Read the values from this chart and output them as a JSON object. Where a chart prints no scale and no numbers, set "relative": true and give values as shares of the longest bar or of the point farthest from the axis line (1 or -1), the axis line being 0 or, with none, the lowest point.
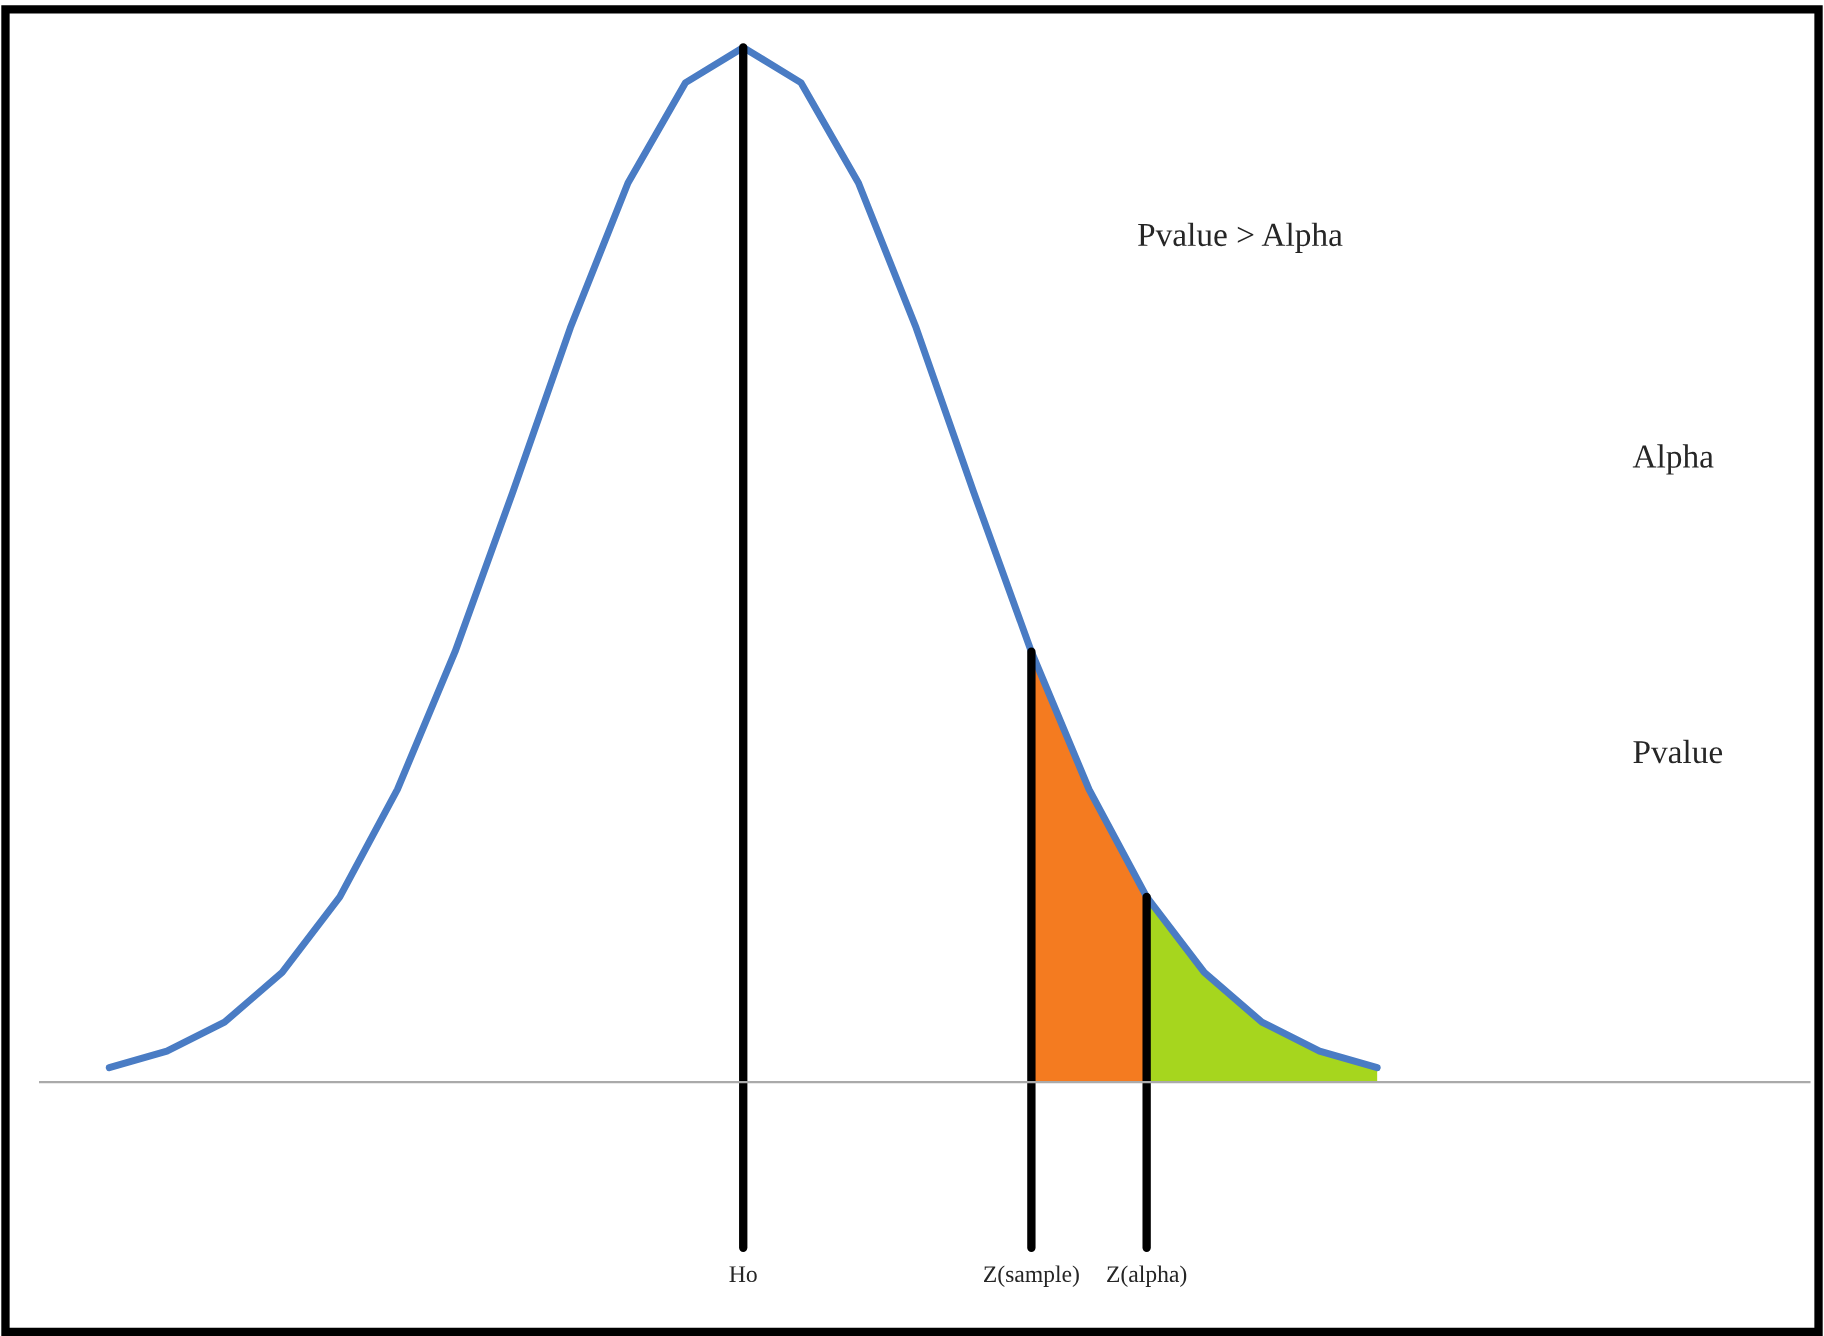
{
  "chart_data": {
    "type": "line",
    "relative": true,
    "categories": [
      null,
      null,
      null,
      null,
      null,
      null,
      null,
      null,
      null,
      null,
      null,
      "Ho",
      null,
      null,
      null,
      null,
      "Z(sample)",
      null,
      "Z(alpha)",
      null,
      null,
      null,
      null,
      null,
      null,
      null,
      null,
      null,
      null,
      null
    ],
    "series": [
      {
        "color": "#4a7cc4",
        "values": [
          0.014,
          0.03,
          0.058,
          0.106,
          0.179,
          0.283,
          0.416,
          0.57,
          0.729,
          0.869,
          0.966,
          1,
          0.966,
          0.869,
          0.729,
          0.57,
          0.416,
          0.283,
          0.179,
          0.106,
          0.058,
          0.03,
          0.014,
          null,
          null,
          null,
          null,
          null,
          null,
          null
        ]
      },
      {
        "type": "area",
        "color": "#f47b20",
        "values": [
          null,
          null,
          null,
          null,
          null,
          null,
          null,
          null,
          null,
          null,
          null,
          null,
          null,
          null,
          null,
          null,
          0.416,
          0.283,
          0.179,
          null,
          null,
          null,
          null,
          null,
          null,
          null,
          null,
          null,
          null,
          null
        ]
      },
      {
        "type": "area",
        "color": "#a6d61e",
        "values": [
          null,
          null,
          null,
          null,
          null,
          null,
          null,
          null,
          null,
          null,
          null,
          null,
          null,
          null,
          null,
          null,
          null,
          null,
          0.179,
          0.106,
          0.058,
          0.03,
          0.014,
          null,
          null,
          null,
          null,
          null,
          null,
          null
        ]
      }
    ],
    "ref_lines": [
      {
        "axis": "x",
        "value": "Ho",
        "color": "#000000"
      },
      {
        "axis": "x",
        "value": "Z(sample)",
        "color": "#000000"
      },
      {
        "axis": "x",
        "value": "Z(alpha)",
        "color": "#000000"
      }
    ],
    "annotations": [
      "Pvalue > Alpha",
      "Alpha",
      "Pvalue"
    ]
  }
}
